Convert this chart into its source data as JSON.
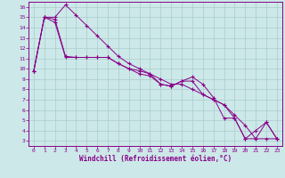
{
  "xlabel": "Windchill (Refroidissement éolien,°C)",
  "bg_color": "#cce8e8",
  "line_color": "#880088",
  "grid_color": "#aacccc",
  "xlim": [
    -0.5,
    23.5
  ],
  "ylim": [
    2.5,
    16.5
  ],
  "xticks": [
    0,
    1,
    2,
    3,
    4,
    5,
    6,
    7,
    8,
    9,
    10,
    11,
    12,
    13,
    14,
    15,
    16,
    17,
    18,
    19,
    20,
    21,
    22,
    23
  ],
  "yticks": [
    3,
    4,
    5,
    6,
    7,
    8,
    9,
    10,
    11,
    12,
    13,
    14,
    15,
    16
  ],
  "series1_x": [
    0,
    1,
    2,
    3,
    4,
    5,
    6,
    7,
    8,
    9,
    10,
    11,
    12,
    13,
    14,
    15,
    16,
    17,
    18,
    19,
    20,
    21,
    22,
    23
  ],
  "series1_y": [
    9.8,
    15.0,
    14.5,
    11.1,
    11.1,
    11.1,
    11.1,
    11.1,
    10.5,
    10.0,
    9.8,
    9.5,
    8.5,
    8.3,
    8.8,
    9.2,
    8.5,
    7.2,
    5.2,
    5.2,
    3.2,
    4.0,
    4.8,
    3.2
  ],
  "series2_x": [
    0,
    1,
    2,
    3,
    4,
    5,
    6,
    7,
    8,
    9,
    10,
    11,
    12,
    13,
    14,
    15,
    16,
    17,
    18,
    19,
    20,
    21,
    22,
    23
  ],
  "series2_y": [
    9.8,
    15.0,
    15.0,
    16.2,
    15.2,
    14.2,
    13.2,
    12.2,
    11.2,
    10.5,
    10.0,
    9.5,
    9.0,
    8.5,
    8.5,
    8.0,
    7.5,
    7.0,
    6.5,
    5.5,
    4.5,
    3.2,
    3.2,
    3.2
  ],
  "series3_x": [
    0,
    1,
    2,
    3,
    4,
    5,
    6,
    7,
    8,
    9,
    10,
    11,
    12,
    13,
    14,
    15,
    16,
    17,
    18,
    19,
    20,
    21,
    22,
    23
  ],
  "series3_y": [
    9.8,
    15.0,
    14.8,
    11.2,
    11.1,
    11.1,
    11.1,
    11.1,
    10.5,
    10.0,
    9.5,
    9.3,
    8.5,
    8.3,
    8.8,
    8.8,
    7.5,
    7.0,
    6.5,
    5.2,
    3.2,
    3.2,
    4.8,
    3.2
  ]
}
